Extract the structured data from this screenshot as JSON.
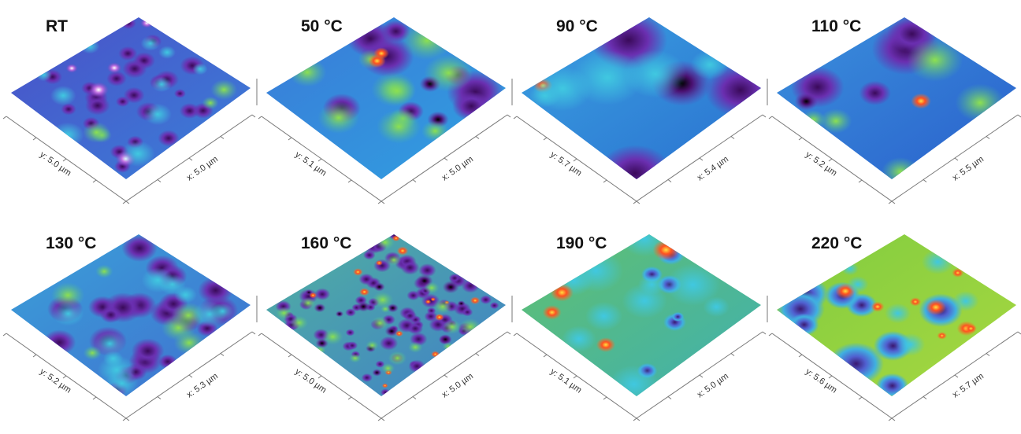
{
  "panels": [
    {
      "title": "RT",
      "y_label": "y: 5.0 µm",
      "x_label": "x: 5.0 µm"
    },
    {
      "title": "50 °C",
      "y_label": "y: 5.1 µm",
      "x_label": "x: 5.0 µm"
    },
    {
      "title": "90 °C",
      "y_label": "y: 5.7 µm",
      "x_label": "x: 5.4 µm"
    },
    {
      "title": "110 °C",
      "y_label": "y: 5.2 µm",
      "x_label": "x: 5.5 µm"
    },
    {
      "title": "130 °C",
      "y_label": "y: 5.2 µm",
      "x_label": "x: 5.3 µm"
    },
    {
      "title": "160 °C",
      "y_label": "y: 5.0 µm",
      "x_label": "x: 5.0 µm"
    },
    {
      "title": "190 °C",
      "y_label": "y: 5.1 µm",
      "x_label": "x: 5.0 µm"
    },
    {
      "title": "220 °C",
      "y_label": "y: 5.6 µm",
      "x_label": "x: 5.7 µm"
    }
  ]
}
